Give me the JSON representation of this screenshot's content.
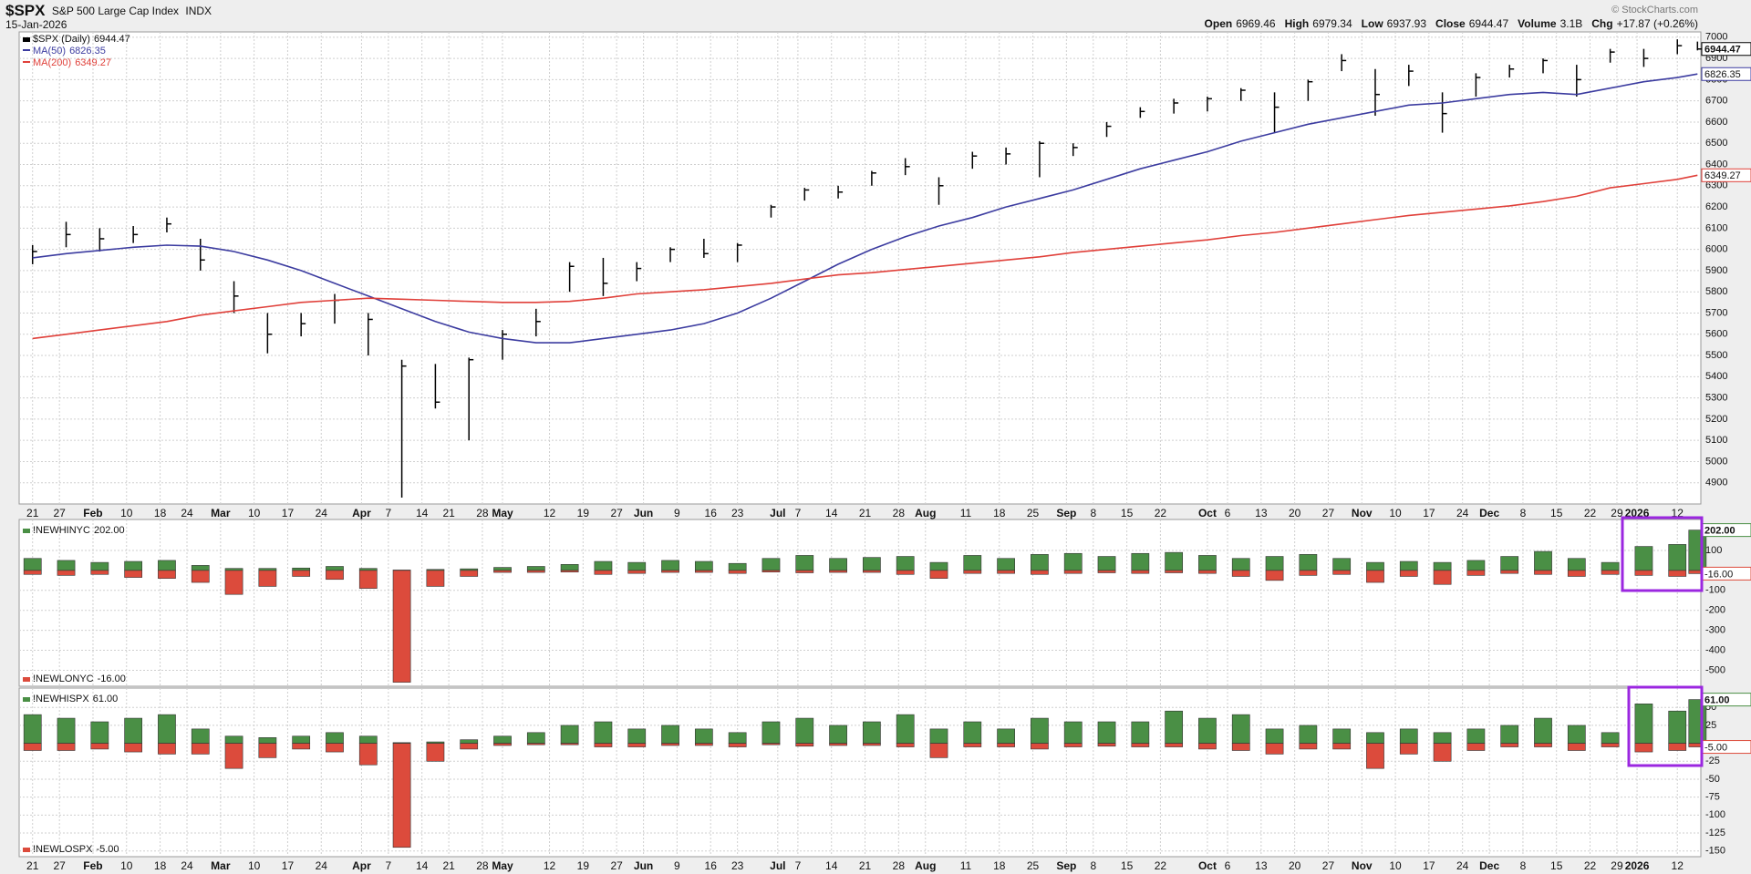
{
  "header": {
    "symbol": "$SPX",
    "name": "S&P 500 Large Cap Index",
    "exchange": "INDX",
    "date": "15-Jan-2026",
    "credit": "© StockCharts.com",
    "quote": [
      {
        "label": "Open",
        "value": "6969.46"
      },
      {
        "label": "High",
        "value": "6979.34"
      },
      {
        "label": "Low",
        "value": "6937.93"
      },
      {
        "label": "Close",
        "value": "6944.47"
      },
      {
        "label": "Volume",
        "value": "3.1B"
      },
      {
        "label": "Chg",
        "value": "+17.87 (+0.26%)"
      }
    ]
  },
  "chart_data": [
    {
      "type": "ohlc",
      "xlim": [
        -2,
        248.5
      ],
      "ylim": [
        4800,
        7025
      ],
      "grid": true,
      "x": [
        0,
        5,
        10,
        15,
        20,
        25,
        30,
        35,
        40,
        45,
        50,
        55,
        60,
        65,
        70,
        75,
        80,
        85,
        90,
        95,
        100,
        105,
        110,
        115,
        120,
        125,
        130,
        135,
        140,
        145,
        150,
        155,
        160,
        165,
        170,
        175,
        180,
        185,
        190,
        195,
        200,
        205,
        210,
        215,
        220,
        225,
        230,
        235,
        240,
        245,
        248
      ],
      "yticks": [
        4900,
        5000,
        5100,
        5200,
        5300,
        5400,
        5500,
        5600,
        5700,
        5800,
        5900,
        6000,
        6100,
        6200,
        6300,
        6400,
        6500,
        6600,
        6700,
        6800,
        6900,
        7000
      ],
      "xticks": [
        {
          "value": 0,
          "label": "21"
        },
        {
          "value": 4,
          "label": "27"
        },
        {
          "value": 9,
          "label": "Feb"
        },
        {
          "value": 14,
          "label": "10"
        },
        {
          "value": 19,
          "label": "18"
        },
        {
          "value": 23,
          "label": "24"
        },
        {
          "value": 28,
          "label": "Mar"
        },
        {
          "value": 33,
          "label": "10"
        },
        {
          "value": 38,
          "label": "17"
        },
        {
          "value": 43,
          "label": "24"
        },
        {
          "value": 49,
          "label": "Apr"
        },
        {
          "value": 53,
          "label": "7"
        },
        {
          "value": 58,
          "label": "14"
        },
        {
          "value": 62,
          "label": "21"
        },
        {
          "value": 67,
          "label": "28"
        },
        {
          "value": 70,
          "label": "May"
        },
        {
          "value": 77,
          "label": "12"
        },
        {
          "value": 82,
          "label": "19"
        },
        {
          "value": 87,
          "label": "27"
        },
        {
          "value": 91,
          "label": "Jun"
        },
        {
          "value": 96,
          "label": "9"
        },
        {
          "value": 101,
          "label": "16"
        },
        {
          "value": 105,
          "label": "23"
        },
        {
          "value": 111,
          "label": "Jul"
        },
        {
          "value": 114,
          "label": "7"
        },
        {
          "value": 119,
          "label": "14"
        },
        {
          "value": 124,
          "label": "21"
        },
        {
          "value": 129,
          "label": "28"
        },
        {
          "value": 133,
          "label": "Aug"
        },
        {
          "value": 139,
          "label": "11"
        },
        {
          "value": 144,
          "label": "18"
        },
        {
          "value": 149,
          "label": "25"
        },
        {
          "value": 154,
          "label": "Sep"
        },
        {
          "value": 158,
          "label": "8"
        },
        {
          "value": 163,
          "label": "15"
        },
        {
          "value": 168,
          "label": "22"
        },
        {
          "value": 175,
          "label": "Oct"
        },
        {
          "value": 178,
          "label": "6"
        },
        {
          "value": 183,
          "label": "13"
        },
        {
          "value": 188,
          "label": "20"
        },
        {
          "value": 193,
          "label": "27"
        },
        {
          "value": 198,
          "label": "Nov"
        },
        {
          "value": 203,
          "label": "10"
        },
        {
          "value": 208,
          "label": "17"
        },
        {
          "value": 213,
          "label": "24"
        },
        {
          "value": 217,
          "label": "Dec"
        },
        {
          "value": 222,
          "label": "8"
        },
        {
          "value": 227,
          "label": "15"
        },
        {
          "value": 232,
          "label": "22"
        },
        {
          "value": 236,
          "label": "29"
        },
        {
          "value": 239,
          "label": "2026"
        },
        {
          "value": 245,
          "label": "12"
        }
      ],
      "series": [
        {
          "name": "$SPX (Daily)",
          "color": "#000000",
          "last_label": "6944.47",
          "high": [
            6020,
            6130,
            6100,
            6110,
            6150,
            6050,
            5850,
            5700,
            5700,
            5790,
            5700,
            5480,
            5460,
            5490,
            5620,
            5720,
            5940,
            5960,
            5940,
            6010,
            6050,
            6030,
            6210,
            6290,
            6300,
            6370,
            6430,
            6340,
            6460,
            6480,
            6510,
            6500,
            6600,
            6670,
            6710,
            6720,
            6760,
            6740,
            6800,
            6920,
            6850,
            6870,
            6740,
            6830,
            6870,
            6900,
            6870,
            6945,
            6945,
            6990,
            6979.34
          ],
          "low": [
            5930,
            6010,
            5990,
            6030,
            6080,
            5900,
            5700,
            5510,
            5590,
            5650,
            5500,
            4830,
            5250,
            5100,
            5480,
            5590,
            5800,
            5780,
            5850,
            5940,
            5960,
            5940,
            6150,
            6230,
            6240,
            6300,
            6350,
            6210,
            6380,
            6400,
            6340,
            6440,
            6530,
            6620,
            6640,
            6650,
            6700,
            6550,
            6700,
            6840,
            6630,
            6770,
            6550,
            6720,
            6810,
            6830,
            6720,
            6880,
            6860,
            6920,
            6937.93
          ],
          "close": [
            5990,
            6070,
            6050,
            6070,
            6120,
            5950,
            5780,
            5600,
            5650,
            5760,
            5670,
            5450,
            5280,
            5480,
            5600,
            5660,
            5920,
            5840,
            5910,
            6000,
            5980,
            6020,
            6200,
            6280,
            6270,
            6360,
            6390,
            6300,
            6440,
            6450,
            6500,
            6480,
            6580,
            6650,
            6690,
            6710,
            6750,
            6670,
            6790,
            6890,
            6730,
            6840,
            6640,
            6810,
            6850,
            6890,
            6800,
            6930,
            6900,
            6960,
            6944.47
          ]
        },
        {
          "name": "MA(50)",
          "color": "#3c3ca0",
          "last_label": "6826.35",
          "values": [
            5960,
            5980,
            5995,
            6010,
            6020,
            6015,
            5990,
            5950,
            5900,
            5840,
            5780,
            5720,
            5660,
            5610,
            5580,
            5560,
            5560,
            5580,
            5600,
            5620,
            5650,
            5700,
            5770,
            5850,
            5930,
            6000,
            6060,
            6110,
            6150,
            6200,
            6240,
            6280,
            6330,
            6380,
            6420,
            6460,
            6510,
            6550,
            6590,
            6620,
            6650,
            6680,
            6690,
            6710,
            6730,
            6740,
            6730,
            6760,
            6790,
            6810,
            6826.35
          ]
        },
        {
          "name": "MA(200)",
          "color": "#e0403a",
          "last_label": "6349.27",
          "values": [
            5580,
            5600,
            5620,
            5640,
            5660,
            5690,
            5710,
            5730,
            5750,
            5760,
            5770,
            5765,
            5760,
            5755,
            5750,
            5750,
            5755,
            5770,
            5790,
            5800,
            5810,
            5825,
            5840,
            5860,
            5880,
            5890,
            5905,
            5920,
            5935,
            5950,
            5965,
            5985,
            6000,
            6015,
            6030,
            6045,
            6065,
            6080,
            6100,
            6120,
            6140,
            6160,
            6175,
            6190,
            6205,
            6225,
            6250,
            6290,
            6310,
            6330,
            6349.27
          ]
        }
      ]
    },
    {
      "type": "bar",
      "xlim": [
        -2,
        248.5
      ],
      "ylim": [
        -580,
        255
      ],
      "grid": true,
      "x": [
        0,
        5,
        10,
        15,
        20,
        25,
        30,
        35,
        40,
        45,
        50,
        55,
        60,
        65,
        70,
        75,
        80,
        85,
        90,
        95,
        100,
        105,
        110,
        115,
        120,
        125,
        130,
        135,
        140,
        145,
        150,
        155,
        160,
        165,
        170,
        175,
        180,
        185,
        190,
        195,
        200,
        205,
        210,
        215,
        220,
        225,
        230,
        235,
        240,
        245,
        248
      ],
      "yticks": [
        100,
        -100,
        -200,
        -300,
        -400,
        -500
      ],
      "series": [
        {
          "name": "!NEWHINYC",
          "color": "#4a8f45",
          "last_label": "202.00",
          "values": [
            60,
            50,
            40,
            45,
            50,
            25,
            10,
            10,
            12,
            20,
            10,
            2,
            5,
            8,
            15,
            20,
            30,
            45,
            40,
            50,
            45,
            35,
            60,
            75,
            60,
            65,
            70,
            40,
            75,
            60,
            80,
            85,
            70,
            85,
            90,
            75,
            60,
            70,
            80,
            60,
            40,
            45,
            40,
            50,
            70,
            95,
            60,
            40,
            120,
            130,
            202
          ]
        },
        {
          "name": "!NEWLONYC",
          "color": "#dc4b3c",
          "last_label": "-16.00",
          "values": [
            -20,
            -25,
            -20,
            -35,
            -40,
            -60,
            -120,
            -80,
            -30,
            -45,
            -90,
            -560,
            -80,
            -30,
            -10,
            -10,
            -8,
            -20,
            -15,
            -10,
            -10,
            -15,
            -8,
            -12,
            -10,
            -10,
            -20,
            -40,
            -15,
            -15,
            -20,
            -15,
            -12,
            -15,
            -12,
            -15,
            -30,
            -50,
            -25,
            -20,
            -60,
            -30,
            -70,
            -25,
            -15,
            -20,
            -30,
            -20,
            -25,
            -30,
            -16
          ]
        }
      ]
    },
    {
      "type": "bar",
      "xlim": [
        -2,
        248.5
      ],
      "ylim": [
        -158,
        77
      ],
      "grid": true,
      "x": [
        0,
        5,
        10,
        15,
        20,
        25,
        30,
        35,
        40,
        45,
        50,
        55,
        60,
        65,
        70,
        75,
        80,
        85,
        90,
        95,
        100,
        105,
        110,
        115,
        120,
        125,
        130,
        135,
        140,
        145,
        150,
        155,
        160,
        165,
        170,
        175,
        180,
        185,
        190,
        195,
        200,
        205,
        210,
        215,
        220,
        225,
        230,
        235,
        240,
        245,
        248
      ],
      "yticks": [
        50,
        25,
        -25,
        -50,
        -75,
        -100,
        -125,
        -150
      ],
      "xticks": [
        {
          "value": 0,
          "label": "21"
        },
        {
          "value": 4,
          "label": "27"
        },
        {
          "value": 9,
          "label": "Feb"
        },
        {
          "value": 14,
          "label": "10"
        },
        {
          "value": 19,
          "label": "18"
        },
        {
          "value": 23,
          "label": "24"
        },
        {
          "value": 28,
          "label": "Mar"
        },
        {
          "value": 33,
          "label": "10"
        },
        {
          "value": 38,
          "label": "17"
        },
        {
          "value": 43,
          "label": "24"
        },
        {
          "value": 49,
          "label": "Apr"
        },
        {
          "value": 53,
          "label": "7"
        },
        {
          "value": 58,
          "label": "14"
        },
        {
          "value": 62,
          "label": "21"
        },
        {
          "value": 67,
          "label": "28"
        },
        {
          "value": 70,
          "label": "May"
        },
        {
          "value": 77,
          "label": "12"
        },
        {
          "value": 82,
          "label": "19"
        },
        {
          "value": 87,
          "label": "27"
        },
        {
          "value": 91,
          "label": "Jun"
        },
        {
          "value": 96,
          "label": "9"
        },
        {
          "value": 101,
          "label": "16"
        },
        {
          "value": 105,
          "label": "23"
        },
        {
          "value": 111,
          "label": "Jul"
        },
        {
          "value": 114,
          "label": "7"
        },
        {
          "value": 119,
          "label": "14"
        },
        {
          "value": 124,
          "label": "21"
        },
        {
          "value": 129,
          "label": "28"
        },
        {
          "value": 133,
          "label": "Aug"
        },
        {
          "value": 139,
          "label": "11"
        },
        {
          "value": 144,
          "label": "18"
        },
        {
          "value": 149,
          "label": "25"
        },
        {
          "value": 154,
          "label": "Sep"
        },
        {
          "value": 158,
          "label": "8"
        },
        {
          "value": 163,
          "label": "15"
        },
        {
          "value": 168,
          "label": "22"
        },
        {
          "value": 175,
          "label": "Oct"
        },
        {
          "value": 178,
          "label": "6"
        },
        {
          "value": 183,
          "label": "13"
        },
        {
          "value": 188,
          "label": "20"
        },
        {
          "value": 193,
          "label": "27"
        },
        {
          "value": 198,
          "label": "Nov"
        },
        {
          "value": 203,
          "label": "10"
        },
        {
          "value": 208,
          "label": "17"
        },
        {
          "value": 213,
          "label": "24"
        },
        {
          "value": 217,
          "label": "Dec"
        },
        {
          "value": 222,
          "label": "8"
        },
        {
          "value": 227,
          "label": "15"
        },
        {
          "value": 232,
          "label": "22"
        },
        {
          "value": 236,
          "label": "29"
        },
        {
          "value": 239,
          "label": "2026"
        },
        {
          "value": 245,
          "label": "12"
        }
      ],
      "series": [
        {
          "name": "!NEWHISPX",
          "color": "#4a8f45",
          "last_label": "61.00",
          "values": [
            40,
            35,
            30,
            35,
            40,
            20,
            10,
            8,
            10,
            15,
            10,
            1,
            2,
            5,
            10,
            15,
            25,
            30,
            20,
            25,
            20,
            15,
            30,
            35,
            25,
            30,
            40,
            20,
            30,
            20,
            35,
            30,
            30,
            30,
            45,
            35,
            40,
            20,
            25,
            20,
            15,
            20,
            15,
            20,
            25,
            35,
            25,
            15,
            55,
            45,
            61
          ]
        },
        {
          "name": "!NEWLOSPX",
          "color": "#dc4b3c",
          "last_label": "-5.00",
          "values": [
            -10,
            -10,
            -8,
            -12,
            -15,
            -15,
            -35,
            -20,
            -8,
            -12,
            -30,
            -145,
            -25,
            -8,
            -3,
            -2,
            -2,
            -5,
            -5,
            -3,
            -3,
            -5,
            -2,
            -4,
            -3,
            -3,
            -5,
            -20,
            -5,
            -5,
            -8,
            -5,
            -4,
            -5,
            -5,
            -8,
            -10,
            -15,
            -8,
            -8,
            -35,
            -15,
            -25,
            -10,
            -5,
            -5,
            -10,
            -5,
            -12,
            -10,
            -5
          ]
        }
      ]
    }
  ]
}
